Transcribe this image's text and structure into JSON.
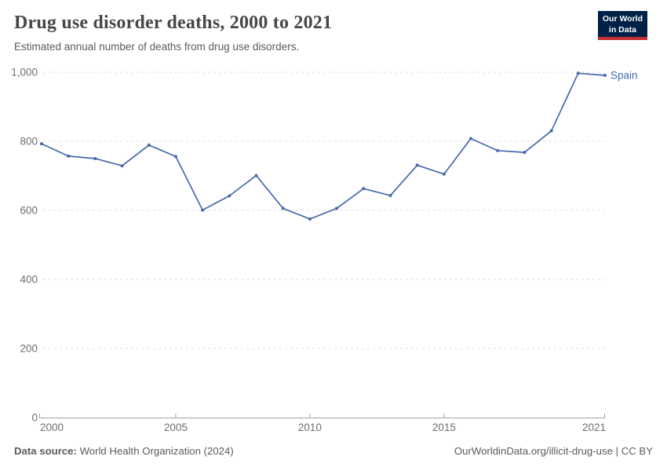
{
  "header": {
    "title": "Drug use disorder deaths, 2000 to 2021",
    "subtitle": "Estimated annual number of deaths from drug use disorders.",
    "logo": {
      "line1": "Our World",
      "line2": "in Data"
    }
  },
  "colors": {
    "line_blue": "#4668ab",
    "logo_bg": "#002147",
    "logo_bar": "#c22f35",
    "grid_gray": "#dddddd",
    "axis_gray": "#a3a3a3",
    "label_gray": "#6e6e6e",
    "text_gray": "#5b5b5b",
    "title_gray": "#474747"
  },
  "chart_data": {
    "type": "line",
    "title": "Drug use disorder deaths, 2000 to 2021",
    "subtitle": "Estimated annual number of deaths from drug use disorders.",
    "xlabel": "",
    "ylabel": "",
    "xlim": [
      2000,
      2021
    ],
    "ylim": [
      0,
      1000
    ],
    "grid": "horizontal-dashed",
    "legend_position": "end-of-line-label",
    "xticks": [
      2000,
      2005,
      2010,
      2015,
      2021
    ],
    "xtick_labels": [
      "2000",
      "2005",
      "2010",
      "2015",
      "2021"
    ],
    "yticks": [
      0,
      200,
      400,
      600,
      800,
      1000
    ],
    "ytick_labels": [
      "0",
      "200",
      "400",
      "600",
      "800",
      "1,000"
    ],
    "series": [
      {
        "name": "Spain",
        "color": "#4668ab",
        "x": [
          2000,
          2001,
          2002,
          2003,
          2004,
          2005,
          2006,
          2007,
          2008,
          2009,
          2010,
          2011,
          2012,
          2013,
          2014,
          2015,
          2016,
          2017,
          2018,
          2019,
          2020,
          2021
        ],
        "values": [
          793,
          757,
          750,
          729,
          789,
          756,
          601,
          642,
          701,
          606,
          575,
          606,
          663,
          643,
          731,
          705,
          808,
          773,
          768,
          830,
          997,
          991
        ]
      }
    ]
  },
  "footer": {
    "datasource_label": "Data source:",
    "datasource_value": "World Health Organization (2024)",
    "url": "OurWorldinData.org/illicit-drug-use",
    "separator": " | ",
    "license": "CC BY"
  }
}
